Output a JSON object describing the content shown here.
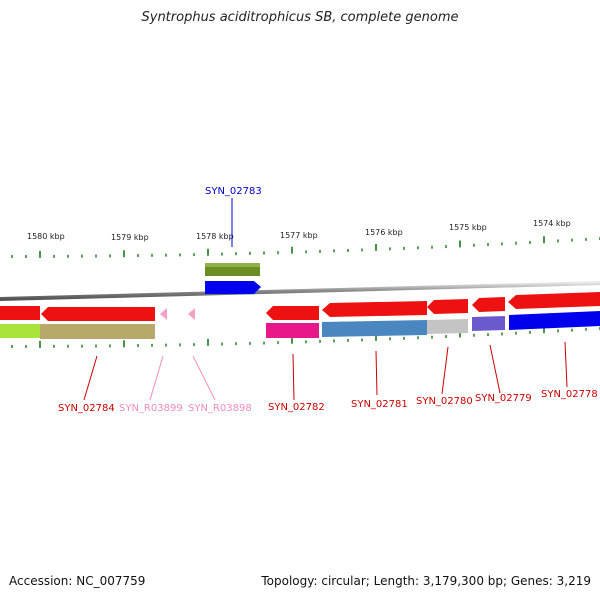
{
  "title": "Syntrophus aciditrophicus SB, complete genome",
  "accession": "Accession: NC_007759",
  "summary": "Topology: circular; Length: 3,179,300 bp; Genes: 3,219",
  "scale_labels": [
    "1580 kbp",
    "1579 kbp",
    "1578 kbp",
    "1577 kbp",
    "1576 kbp",
    "1575 kbp",
    "1574 kbp"
  ],
  "gene_labels": [
    "SYN_02783",
    "SYN_02784",
    "SYN_R03899",
    "SYN_R03898",
    "SYN_02782",
    "SYN_02781",
    "SYN_02780",
    "SYN_02779",
    "SYN_02778"
  ],
  "colors": {
    "backbone": "#808080",
    "tick": "#1a7a1a",
    "gene_red": "#ee1111",
    "label_red": "#cc0000",
    "label_pink": "#f08cbe",
    "label_blue": "#0000cc",
    "olive": "#6b8e23",
    "khaki": "#b8a86a",
    "lime": "#a6e43c",
    "magenta": "#e8178a",
    "steel": "#4a86c0",
    "silver": "#c4c4c4",
    "slate": "#6a5acd",
    "blue": "#0000ee"
  }
}
